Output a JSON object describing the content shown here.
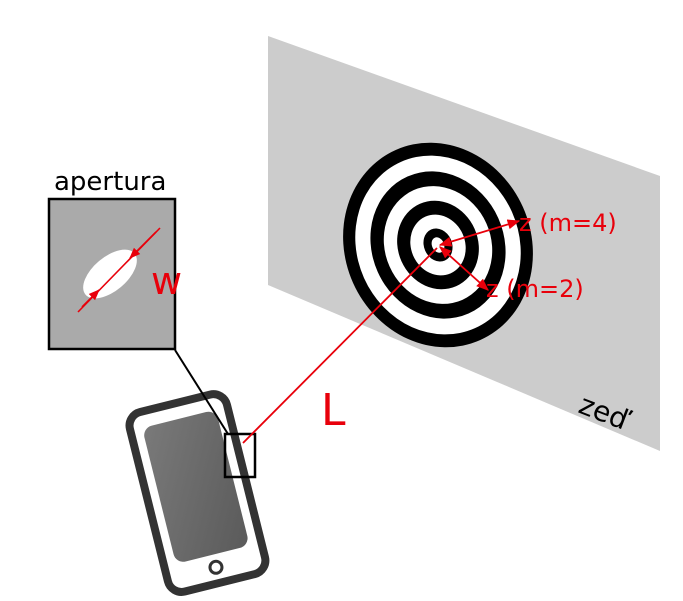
{
  "labels": {
    "aperture": "apertura",
    "width": "w",
    "distance": "L",
    "ring_m4": "z (m=4)",
    "ring_m2": "z (m=2)",
    "wall": "zeď"
  },
  "colors": {
    "accent": "#e8000b",
    "wall": "#cccccc",
    "aperture_panel": "#aaaaaa",
    "phone_frame": "#333333",
    "phone_screen": "#666666"
  },
  "rings": {
    "count": 5,
    "colors": [
      "#000000",
      "#ffffff"
    ]
  }
}
